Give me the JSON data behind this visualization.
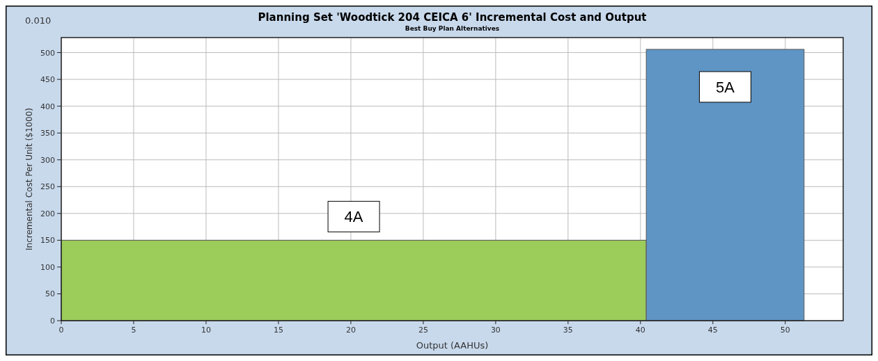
{
  "chart_data": {
    "type": "histogram",
    "title": "Planning Set 'Woodtick 204 CEICA 6' Incremental Cost and Output",
    "subtitle": "Best Buy Plan Alternatives",
    "xlabel": "Output (AAHUs)",
    "ylabel": "Incremental Cost Per Unit ($1000)",
    "bins": [
      0,
      40.4,
      51.3
    ],
    "values": [
      150,
      506
    ],
    "colors": [
      "#9ccc5a",
      "#5f95c4"
    ],
    "xlim": [
      0,
      54
    ],
    "xticks": [
      0,
      5,
      10,
      15,
      20,
      25,
      30,
      35,
      40,
      45,
      50
    ],
    "ylim": [
      0,
      528
    ],
    "yticks": [
      0,
      50,
      100,
      150,
      200,
      250,
      300,
      350,
      400,
      450,
      500
    ],
    "grid": true,
    "annotations": [
      "0.010",
      "4A",
      "5A"
    ]
  }
}
